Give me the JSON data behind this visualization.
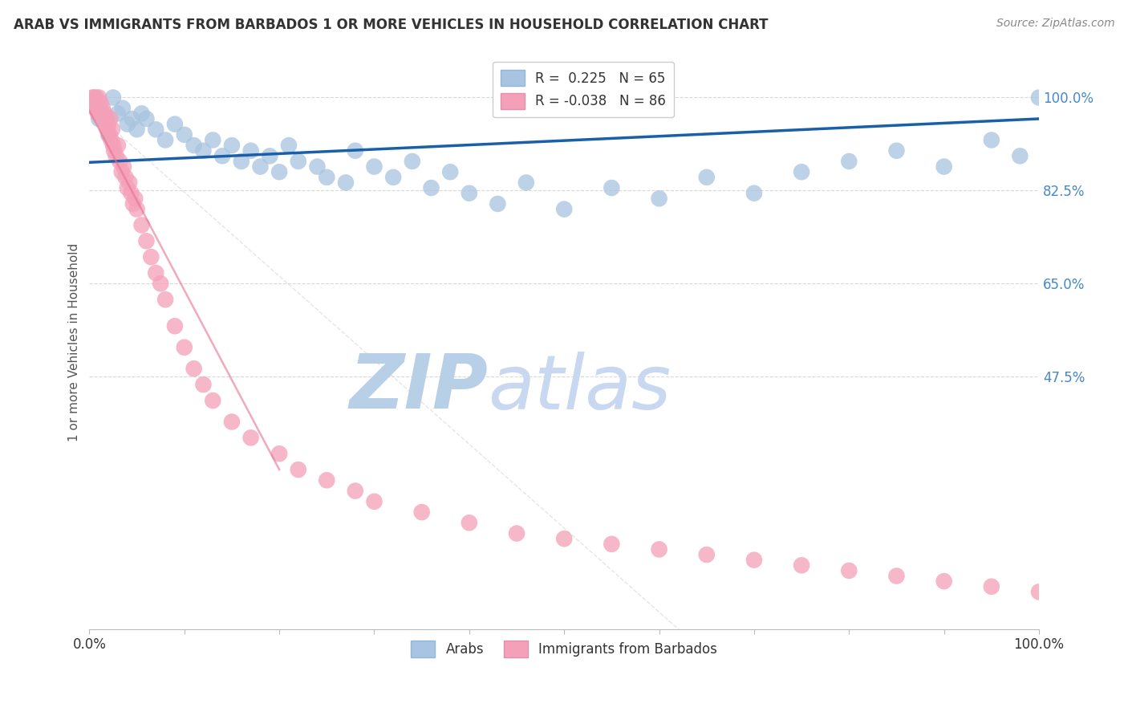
{
  "title": "ARAB VS IMMIGRANTS FROM BARBADOS 1 OR MORE VEHICLES IN HOUSEHOLD CORRELATION CHART",
  "source": "Source: ZipAtlas.com",
  "ylabel": "1 or more Vehicles in Household",
  "y_tick_labels": [
    "100.0%",
    "82.5%",
    "65.0%",
    "47.5%"
  ],
  "y_tick_values": [
    1.0,
    0.825,
    0.65,
    0.475
  ],
  "ylim": [
    0.0,
    1.08
  ],
  "xlim": [
    0.0,
    1.0
  ],
  "arab_color": "#a8c4e0",
  "barbados_color": "#f4a0b8",
  "arab_line_color": "#1a5fa8",
  "barbados_line_color": "#e87090",
  "background_color": "#ffffff",
  "grid_color": "#d0d0d0",
  "right_label_color": "#4488cc",
  "arab_scatter_x": [
    0.01,
    0.02,
    0.025,
    0.03,
    0.035,
    0.04,
    0.045,
    0.05,
    0.055,
    0.06,
    0.07,
    0.08,
    0.09,
    0.1,
    0.11,
    0.12,
    0.13,
    0.14,
    0.15,
    0.16,
    0.17,
    0.18,
    0.19,
    0.2,
    0.21,
    0.22,
    0.24,
    0.25,
    0.27,
    0.28,
    0.3,
    0.32,
    0.34,
    0.36,
    0.38,
    0.4,
    0.43,
    0.46,
    0.5,
    0.55,
    0.6,
    0.65,
    0.7,
    0.75,
    0.8,
    0.85,
    0.9,
    0.95,
    0.98,
    1.0
  ],
  "arab_scatter_y": [
    0.96,
    0.93,
    1.0,
    0.97,
    0.98,
    0.95,
    0.96,
    0.94,
    0.97,
    0.96,
    0.94,
    0.92,
    0.95,
    0.93,
    0.91,
    0.9,
    0.92,
    0.89,
    0.91,
    0.88,
    0.9,
    0.87,
    0.89,
    0.86,
    0.91,
    0.88,
    0.87,
    0.85,
    0.84,
    0.9,
    0.87,
    0.85,
    0.88,
    0.83,
    0.86,
    0.82,
    0.8,
    0.84,
    0.79,
    0.83,
    0.81,
    0.85,
    0.82,
    0.86,
    0.88,
    0.9,
    0.87,
    0.92,
    0.89,
    1.0
  ],
  "barbados_scatter_x": [
    0.003,
    0.004,
    0.005,
    0.006,
    0.007,
    0.008,
    0.009,
    0.01,
    0.011,
    0.012,
    0.013,
    0.014,
    0.015,
    0.016,
    0.017,
    0.018,
    0.019,
    0.02,
    0.021,
    0.022,
    0.023,
    0.024,
    0.025,
    0.026,
    0.028,
    0.03,
    0.032,
    0.034,
    0.036,
    0.038,
    0.04,
    0.042,
    0.044,
    0.046,
    0.048,
    0.05,
    0.055,
    0.06,
    0.065,
    0.07,
    0.075,
    0.08,
    0.09,
    0.1,
    0.11,
    0.12,
    0.13,
    0.15,
    0.17,
    0.2,
    0.22,
    0.25,
    0.28,
    0.3,
    0.35,
    0.4,
    0.45,
    0.5,
    0.55,
    0.6,
    0.65,
    0.7,
    0.75,
    0.8,
    0.85,
    0.9,
    0.95,
    1.0
  ],
  "barbados_scatter_y": [
    1.0,
    0.99,
    1.0,
    0.98,
    1.0,
    0.99,
    0.97,
    1.0,
    0.98,
    0.99,
    0.97,
    0.98,
    0.96,
    0.97,
    0.95,
    0.96,
    0.94,
    0.95,
    0.93,
    0.96,
    0.92,
    0.94,
    0.91,
    0.9,
    0.89,
    0.91,
    0.88,
    0.86,
    0.87,
    0.85,
    0.83,
    0.84,
    0.82,
    0.8,
    0.81,
    0.79,
    0.76,
    0.73,
    0.7,
    0.67,
    0.65,
    0.62,
    0.57,
    0.53,
    0.49,
    0.46,
    0.43,
    0.39,
    0.36,
    0.33,
    0.3,
    0.28,
    0.26,
    0.24,
    0.22,
    0.2,
    0.18,
    0.17,
    0.16,
    0.15,
    0.14,
    0.13,
    0.12,
    0.11,
    0.1,
    0.09,
    0.08,
    0.07
  ],
  "arab_line_x": [
    0.0,
    1.0
  ],
  "arab_line_y": [
    0.878,
    0.96
  ],
  "barbados_line_x": [
    0.0,
    0.2
  ],
  "barbados_line_y": [
    0.975,
    0.3
  ],
  "watermark_zip_color": "#b8cfe8",
  "watermark_atlas_color": "#c8d8f0"
}
